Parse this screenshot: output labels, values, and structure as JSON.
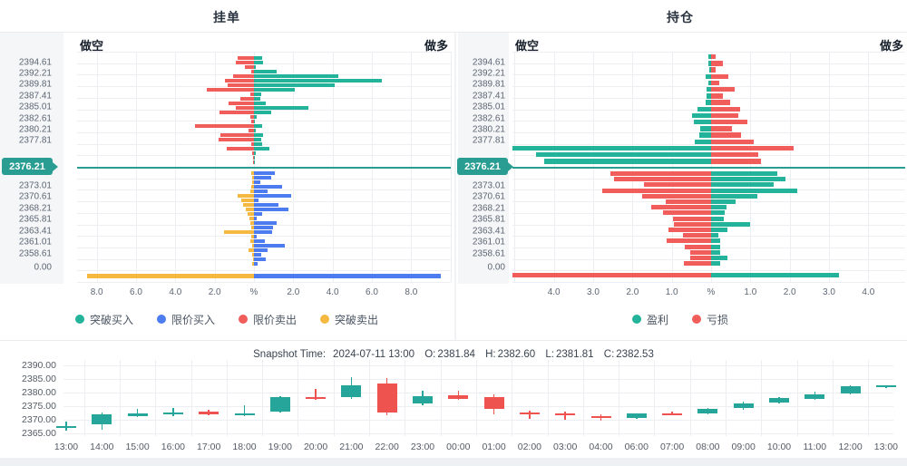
{
  "palette": {
    "green": "#22b39a",
    "red": "#f05d5a",
    "blue": "#4d7cf0",
    "yellow": "#f5b942",
    "teal_line": "#2a9d92",
    "candle_up": "#26a69a",
    "candle_down": "#ef5350",
    "grid": "#eceef2"
  },
  "chart_data": [
    {
      "id": "pending-orders",
      "type": "bar",
      "title": "挂单",
      "side_labels": {
        "short": "做空",
        "long": "做多"
      },
      "current_price": "2376.21",
      "x_ticks": [
        "8.0",
        "6.0",
        "4.0",
        "2.0",
        "%",
        "2.0",
        "4.0",
        "6.0",
        "8.0"
      ],
      "y_labels_above": [
        "2394.61",
        "2392.21",
        "2389.81",
        "2387.41",
        "2385.01",
        "2382.61",
        "2380.21",
        "2377.81"
      ],
      "y_labels_below": [
        "2373.01",
        "2370.61",
        "2368.21",
        "2365.81",
        "2363.41",
        "2361.01",
        "2358.61"
      ],
      "zero_label": "0.00",
      "legend": [
        {
          "label": "突破买入",
          "color": "green"
        },
        {
          "label": "限价买入",
          "color": "blue"
        },
        {
          "label": "限价卖出",
          "color": "red"
        },
        {
          "label": "突破卖出",
          "color": "yellow"
        }
      ],
      "sections": {
        "above": {
          "left_series": "限价卖出",
          "left_color": "red",
          "right_series": "突破买入",
          "right_color": "green",
          "rows": [
            [
              0.85,
              0.43
            ],
            [
              0.9,
              0.45
            ],
            [
              0.45,
              0.1
            ],
            [
              0.12,
              1.15
            ],
            [
              1.08,
              4.3
            ],
            [
              1.46,
              6.5
            ],
            [
              1.35,
              4.1
            ],
            [
              2.38,
              2.08
            ],
            [
              0.18,
              0.38
            ],
            [
              0.69,
              0.34
            ],
            [
              1.31,
              0.62
            ],
            [
              0.92,
              2.77
            ],
            [
              1.77,
              0.89
            ],
            [
              0.18,
              0.12
            ],
            [
              0.12,
              0.05
            ],
            [
              3.0,
              0.43
            ],
            [
              0.28,
              0.08
            ],
            [
              1.72,
              0.46
            ],
            [
              1.82,
              0.38
            ],
            [
              0.15,
              0.43
            ],
            [
              1.38,
              0.77
            ],
            [
              0.08,
              0.08
            ],
            [
              0.05,
              0.05
            ],
            [
              0.06,
              0.06
            ]
          ]
        },
        "below": {
          "left_series": "突破卖出",
          "left_color": "yellow",
          "right_series": "限价买入",
          "right_color": "blue",
          "rows": [
            [
              0.12,
              1.08
            ],
            [
              0.08,
              0.89
            ],
            [
              0.1,
              0.3
            ],
            [
              0.15,
              1.42
            ],
            [
              0.18,
              0.69
            ],
            [
              0.85,
              1.88
            ],
            [
              0.65,
              0.23
            ],
            [
              0.54,
              1.23
            ],
            [
              0.43,
              1.77
            ],
            [
              0.31,
              0.43
            ],
            [
              0.23,
              0.12
            ],
            [
              0.18,
              1.15
            ],
            [
              0.12,
              0.95
            ],
            [
              1.51,
              0.92
            ],
            [
              0.15,
              0.15
            ],
            [
              0.18,
              0.54
            ],
            [
              0.08,
              1.57
            ],
            [
              0.28,
              0.69
            ],
            [
              0.1,
              0.35
            ],
            [
              0.06,
              0.6
            ],
            [
              0.1,
              0.2
            ]
          ]
        },
        "zero_row": [
          8.5,
          9.5
        ]
      }
    },
    {
      "id": "positions",
      "type": "bar",
      "title": "持仓",
      "side_labels": {
        "short": "做空",
        "long": "做多"
      },
      "current_price": "2376.21",
      "x_ticks": [
        "4.0",
        "3.0",
        "2.0",
        "1.0",
        "%",
        "1.0",
        "2.0",
        "3.0",
        "4.0"
      ],
      "y_labels_above": [
        "2394.61",
        "2392.21",
        "2389.81",
        "2387.41",
        "2385.01",
        "2382.61",
        "2380.21",
        "2377.81"
      ],
      "y_labels_below": [
        "2373.01",
        "2370.61",
        "2368.21",
        "2365.81",
        "2363.41",
        "2361.01",
        "2358.61"
      ],
      "zero_label": "0.00",
      "legend": [
        {
          "label": "盈利",
          "color": "green"
        },
        {
          "label": "亏损",
          "color": "red"
        }
      ],
      "sections": {
        "above": {
          "left_series": "盈利",
          "left_color": "green",
          "right_series": "亏损",
          "right_color": "red",
          "rows": [
            [
              0.06,
              0.12
            ],
            [
              0.08,
              0.29
            ],
            [
              0.05,
              0.11
            ],
            [
              0.14,
              0.45
            ],
            [
              0.08,
              0.2
            ],
            [
              0.11,
              0.6
            ],
            [
              0.12,
              0.31
            ],
            [
              0.15,
              0.49
            ],
            [
              0.34,
              0.74
            ],
            [
              0.48,
              0.69
            ],
            [
              0.45,
              0.92
            ],
            [
              0.28,
              0.54
            ],
            [
              0.31,
              0.77
            ],
            [
              0.42,
              1.08
            ],
            [
              5.05,
              2.1
            ],
            [
              4.45,
              1.2
            ],
            [
              4.25,
              1.28
            ]
          ]
        },
        "below": {
          "left_series": "亏损",
          "left_color": "red",
          "right_series": "盈利",
          "right_color": "green",
          "rows": [
            [
              2.56,
              1.69
            ],
            [
              2.48,
              1.9
            ],
            [
              1.7,
              1.6
            ],
            [
              2.78,
              2.19
            ],
            [
              1.75,
              1.17
            ],
            [
              1.15,
              0.62
            ],
            [
              1.52,
              0.4
            ],
            [
              1.22,
              0.35
            ],
            [
              0.98,
              0.32
            ],
            [
              0.94,
              1.0
            ],
            [
              1.09,
              0.42
            ],
            [
              0.71,
              0.19
            ],
            [
              1.14,
              0.22
            ],
            [
              0.68,
              0.22
            ],
            [
              0.52,
              0.22
            ],
            [
              0.54,
              0.42
            ],
            [
              0.69,
              0.22
            ]
          ]
        },
        "zero_row": [
          5.05,
          3.25
        ]
      }
    },
    {
      "id": "candles",
      "type": "candlestick",
      "snapshot": {
        "label": "Snapshot Time:",
        "time": "2024-07-11 13:00",
        "o_key": "O:",
        "o": "2381.84",
        "h_key": "H:",
        "h": "2382.60",
        "l_key": "L:",
        "l": "2381.81",
        "c_key": "C:",
        "c": "2382.53"
      },
      "y_ticks": [
        "2390.00",
        "2385.00",
        "2380.00",
        "2375.00",
        "2370.00",
        "2365.00"
      ],
      "ylim": [
        2363.5,
        2392.0
      ],
      "candles": [
        {
          "t": "13:00",
          "o": 2367.3,
          "h": 2369.4,
          "l": 2366.1,
          "c": 2367.8
        },
        {
          "t": "14:00",
          "o": 2368.2,
          "h": 2372.6,
          "l": 2366.3,
          "c": 2372.0
        },
        {
          "t": "15:00",
          "o": 2371.4,
          "h": 2374.0,
          "l": 2370.9,
          "c": 2372.4
        },
        {
          "t": "16:00",
          "o": 2372.3,
          "h": 2374.2,
          "l": 2371.3,
          "c": 2372.7
        },
        {
          "t": "17:00",
          "o": 2372.9,
          "h": 2373.6,
          "l": 2371.7,
          "c": 2372.1
        },
        {
          "t": "18:00",
          "o": 2371.8,
          "h": 2375.2,
          "l": 2371.4,
          "c": 2372.4
        },
        {
          "t": "19:00",
          "o": 2372.9,
          "h": 2378.6,
          "l": 2372.5,
          "c": 2378.2
        },
        {
          "t": "20:00",
          "o": 2378.4,
          "h": 2381.2,
          "l": 2377.4,
          "c": 2378.0
        },
        {
          "t": "21:00",
          "o": 2378.3,
          "h": 2385.8,
          "l": 2377.8,
          "c": 2382.6
        },
        {
          "t": "22:00",
          "o": 2383.2,
          "h": 2385.4,
          "l": 2371.6,
          "c": 2372.8
        },
        {
          "t": "23:00",
          "o": 2375.9,
          "h": 2380.8,
          "l": 2375.4,
          "c": 2378.7
        },
        {
          "t": "00:00",
          "o": 2378.9,
          "h": 2380.6,
          "l": 2377.3,
          "c": 2377.8
        },
        {
          "t": "01:00",
          "o": 2378.5,
          "h": 2379.3,
          "l": 2371.9,
          "c": 2374.0
        },
        {
          "t": "02:00",
          "o": 2372.6,
          "h": 2373.2,
          "l": 2370.3,
          "c": 2372.0
        },
        {
          "t": "03:00",
          "o": 2372.4,
          "h": 2372.9,
          "l": 2370.0,
          "c": 2371.6
        },
        {
          "t": "04:00",
          "o": 2371.2,
          "h": 2372.0,
          "l": 2369.7,
          "c": 2370.7
        },
        {
          "t": "06:00",
          "o": 2370.6,
          "h": 2372.4,
          "l": 2370.2,
          "c": 2372.2
        },
        {
          "t": "07:00",
          "o": 2372.3,
          "h": 2373.1,
          "l": 2371.5,
          "c": 2372.0
        },
        {
          "t": "08:00",
          "o": 2372.4,
          "h": 2374.4,
          "l": 2372.1,
          "c": 2373.9
        },
        {
          "t": "09:00",
          "o": 2374.3,
          "h": 2376.6,
          "l": 2373.7,
          "c": 2376.1
        },
        {
          "t": "10:00",
          "o": 2376.3,
          "h": 2378.4,
          "l": 2375.9,
          "c": 2377.9
        },
        {
          "t": "11:00",
          "o": 2377.8,
          "h": 2380.2,
          "l": 2377.4,
          "c": 2379.4
        },
        {
          "t": "12:00",
          "o": 2379.6,
          "h": 2382.7,
          "l": 2379.3,
          "c": 2382.4
        },
        {
          "t": "13:00",
          "o": 2381.84,
          "h": 2382.6,
          "l": 2381.81,
          "c": 2382.53
        }
      ]
    }
  ]
}
